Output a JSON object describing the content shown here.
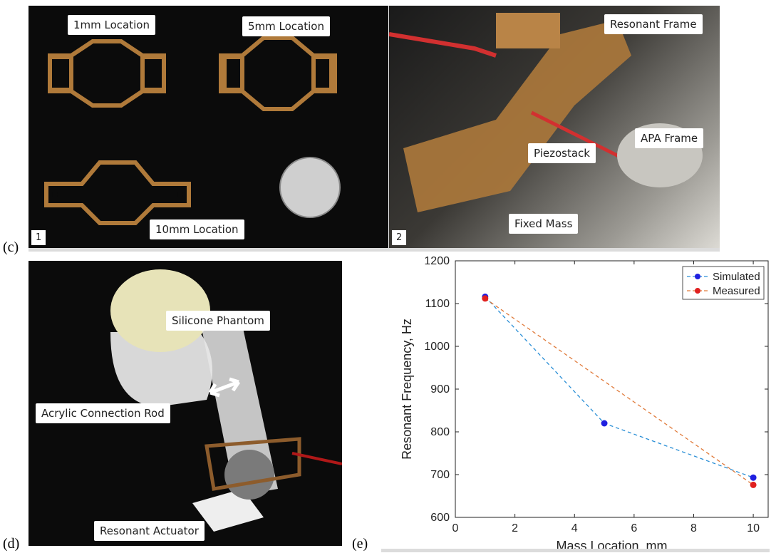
{
  "panels": {
    "c_label": "(c)",
    "d_label": "(d)",
    "e_label": "(e)",
    "c1": {
      "number": "1",
      "labels": [
        "1mm Location",
        "5mm Location",
        "10mm Location"
      ]
    },
    "c2": {
      "number": "2",
      "labels": [
        "Resonant Frame",
        "APA Frame",
        "Piezostack",
        "Fixed Mass"
      ]
    },
    "d": {
      "labels": [
        "Silicone Phantom",
        "Acrylic Connection Rod",
        "Resonant Actuator"
      ]
    }
  },
  "chart_data": {
    "type": "line",
    "xlabel": "Mass Location, mm",
    "ylabel": "Resonant Frequency, Hz",
    "xlim": [
      0,
      10.5
    ],
    "ylim": [
      600,
      1200
    ],
    "xticks": [
      0,
      2,
      4,
      6,
      8,
      10
    ],
    "yticks": [
      600,
      700,
      800,
      900,
      1000,
      1100,
      1200
    ],
    "legend_position": "top-right",
    "series": [
      {
        "name": "Simulated",
        "color": "#1f1fe0",
        "line_color": "#2a8fd6",
        "x": [
          1,
          5,
          10
        ],
        "y": [
          1116,
          820,
          693
        ]
      },
      {
        "name": "Measured",
        "color": "#e02020",
        "line_color": "#e07a3a",
        "x": [
          1,
          10
        ],
        "y": [
          1112,
          676
        ]
      }
    ]
  }
}
